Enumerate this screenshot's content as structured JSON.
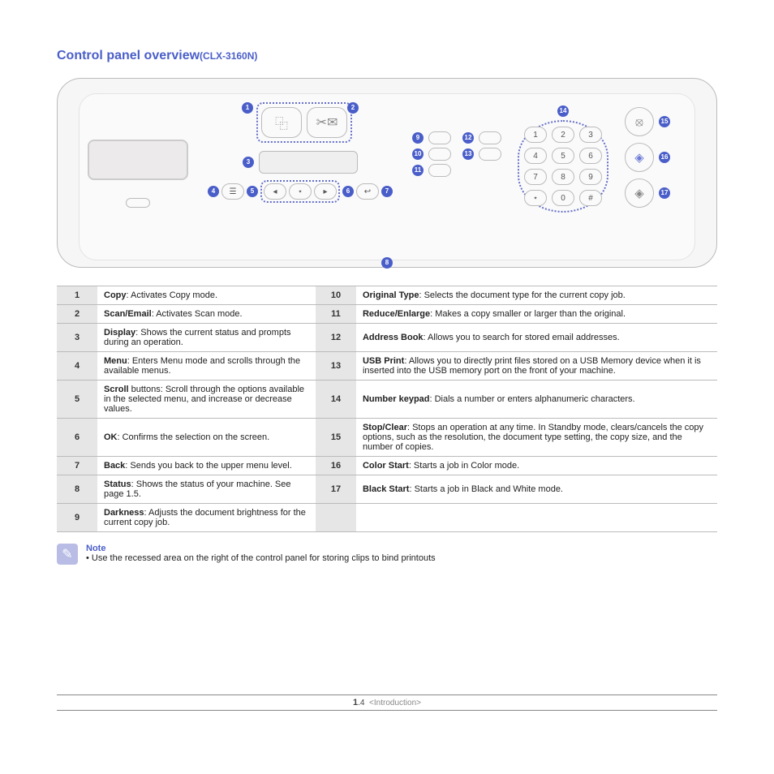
{
  "title_main": "Control panel overview",
  "title_model": "(CLX-3160N)",
  "callouts": {
    "c1": "1",
    "c2": "2",
    "c3": "3",
    "c4": "4",
    "c5": "5",
    "c6": "6",
    "c7": "7",
    "c8": "8",
    "c9": "9",
    "c10": "10",
    "c11": "11",
    "c12": "12",
    "c13": "13",
    "c14": "14",
    "c15": "15",
    "c16": "16",
    "c17": "17"
  },
  "icons": {
    "copy": "⿻",
    "scan": "✂✉",
    "menu": "☰",
    "left": "◂",
    "ok": "⋆",
    "right": "▸",
    "back": "↩",
    "stop": "⦻",
    "colorstart": "◈",
    "blackstart": "◈"
  },
  "keypad": [
    "1",
    "2",
    "3",
    "4",
    "5",
    "6",
    "7",
    "8",
    "9",
    "⋆",
    "0",
    "#"
  ],
  "table": [
    {
      "n": "1",
      "b": "Copy",
      "t": ": Activates Copy mode."
    },
    {
      "n": "2",
      "b": "Scan/Email",
      "t": ": Activates Scan mode."
    },
    {
      "n": "3",
      "b": "Display",
      "t": ": Shows the current status and prompts during an operation."
    },
    {
      "n": "4",
      "b": "Menu",
      "t": ": Enters Menu mode and scrolls through the available menus."
    },
    {
      "n": "5",
      "b": "Scroll",
      "t": " buttons: Scroll through the options available in the selected menu, and increase or decrease values."
    },
    {
      "n": "6",
      "b": "OK",
      "t": ": Confirms the selection on the screen."
    },
    {
      "n": "7",
      "b": "Back",
      "t": ": Sends you back to the upper menu level."
    },
    {
      "n": "8",
      "b": "Status",
      "t": ": Shows the status of your machine. See page 1.5."
    },
    {
      "n": "9",
      "b": "Darkness",
      "t": ": Adjusts the document brightness for the current copy job."
    },
    {
      "n": "10",
      "b": "Original Type",
      "t": ": Selects the document type for the current copy job."
    },
    {
      "n": "11",
      "b": "Reduce/Enlarge",
      "t": ": Makes a copy smaller or larger than the original."
    },
    {
      "n": "12",
      "b": "Address Book",
      "t": ": Allows you to search for stored email addresses."
    },
    {
      "n": "13",
      "b": "USB Print",
      "t": ": Allows you to directly print files stored on a USB Memory device when it is inserted into the USB memory port on the front of your machine."
    },
    {
      "n": "14",
      "b": "Number keypad",
      "t": ": Dials a number or enters alphanumeric characters."
    },
    {
      "n": "15",
      "b": "Stop/Clear",
      "t": ": Stops an operation at any time. In Standby mode, clears/cancels the copy options, such as the resolution, the document type setting, the copy size, and the number of copies."
    },
    {
      "n": "16",
      "b": "Color Start",
      "t": ": Starts a job in Color mode."
    },
    {
      "n": "17",
      "b": "Black Start",
      "t": ": Starts a job in Black and White mode."
    }
  ],
  "note": {
    "title": "Note",
    "text": "•  Use the recessed area on the right of the control panel for storing clips to bind printouts"
  },
  "footer": {
    "page_major": "1",
    "page_minor": ".4",
    "section": "<Introduction>"
  }
}
